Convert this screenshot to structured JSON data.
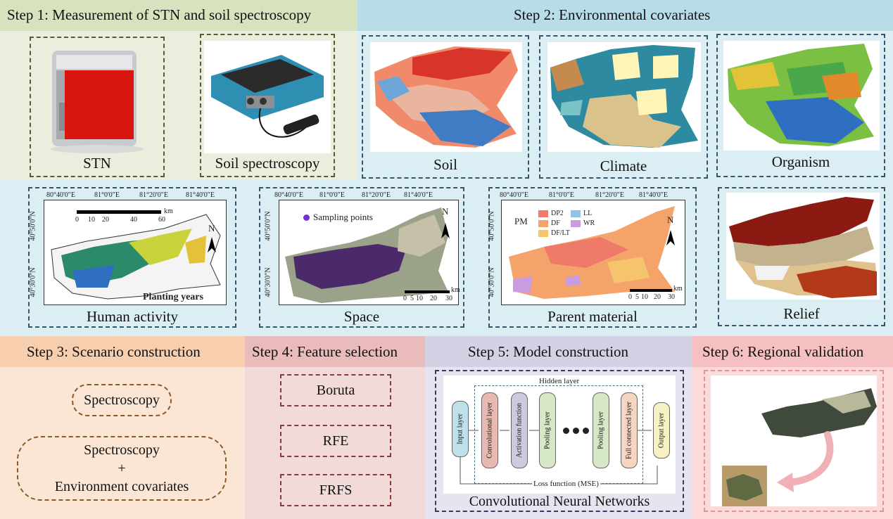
{
  "steps": {
    "step1": "Step 1: Measurement of STN and soil spectroscopy",
    "step2": "Step 2: Environmental covariates",
    "step3": "Step 3: Scenario construction",
    "step4": "Step 4: Feature selection",
    "step5": "Step 5: Model construction",
    "step6": "Step 6: Regional validation"
  },
  "step1": {
    "stn_label": "STN",
    "spec_label": "Soil spectroscopy"
  },
  "covariates": {
    "soil": "Soil",
    "climate": "Climate",
    "organism": "Organism",
    "human": "Human activity",
    "space": "Space",
    "parent": "Parent material",
    "relief": "Relief"
  },
  "maps": {
    "human": {
      "lon_ticks": [
        "80°40'0\"E",
        "81°0'0\"E",
        "81°20'0\"E",
        "81°40'0\"E"
      ],
      "lat_ticks": [
        "40°50'0\"N",
        "40°30'0\"N"
      ],
      "scale": [
        "0",
        "10",
        "20",
        "40",
        "60"
      ],
      "scale_unit": "km",
      "legend": "Planting years",
      "north": "N"
    },
    "space": {
      "lon_ticks": [
        "80°40'0\"E",
        "81°0'0\"E",
        "81°20'0\"E",
        "81°40'0\"E"
      ],
      "lat_ticks": [
        "40°50'0\"N",
        "40°30'0\"N"
      ],
      "legend": "Sampling points",
      "scale": [
        "0",
        "5",
        "10",
        "20",
        "30"
      ],
      "scale_unit": "km",
      "north": "N"
    },
    "parent": {
      "lon_ticks": [
        "80°40'0\"E",
        "81°0'0\"E",
        "81°20'0\"E",
        "81°40'0\"E"
      ],
      "lat_ticks": [
        "40°50'0\"N",
        "40°30'0\"N"
      ],
      "pm_title": "PM",
      "pm_items": [
        {
          "code": "DP2",
          "color": "#f07a6a"
        },
        {
          "code": "DF",
          "color": "#f4a46a"
        },
        {
          "code": "DF/LT",
          "color": "#f7c46e"
        },
        {
          "code": "LL",
          "color": "#8fc3e8"
        },
        {
          "code": "WR",
          "color": "#c99be0"
        }
      ],
      "scale": [
        "0",
        "5",
        "10",
        "20",
        "30"
      ],
      "scale_unit": "km",
      "north": "N"
    }
  },
  "scenario": {
    "opt1": "Spectroscopy",
    "opt2_line1": "Spectroscopy",
    "opt2_plus": "+",
    "opt2_line2": "Environment covariates"
  },
  "features": {
    "f1": "Boruta",
    "f2": "RFE",
    "f3": "FRFS"
  },
  "cnn": {
    "hidden": "Hidden layer",
    "input": "Input layer",
    "conv": "Convolutional layer",
    "act": "Activation function",
    "pool1": "Pooling layer",
    "pool2": "Pooling layer",
    "fc": "Full connected layer",
    "output": "Output layer",
    "loss": "Loss function (MSE)",
    "caption": "Convolutional Neural Networks"
  },
  "colors": {
    "step1_bg": "#e9efdc",
    "step1_head": "#d6e3be",
    "step2_bg": "#dbeef4",
    "step2_head": "#b8dde9",
    "step3_bg": "#fbe6d6",
    "step3_head": "#f8cfae",
    "step4_bg": "#f2dad9",
    "step4_head": "#e9bcbb",
    "step5_bg": "#e7e4ef",
    "step5_head": "#d6d0e5",
    "step6_bg": "#fbdada",
    "step6_head": "#f6c0c0"
  }
}
